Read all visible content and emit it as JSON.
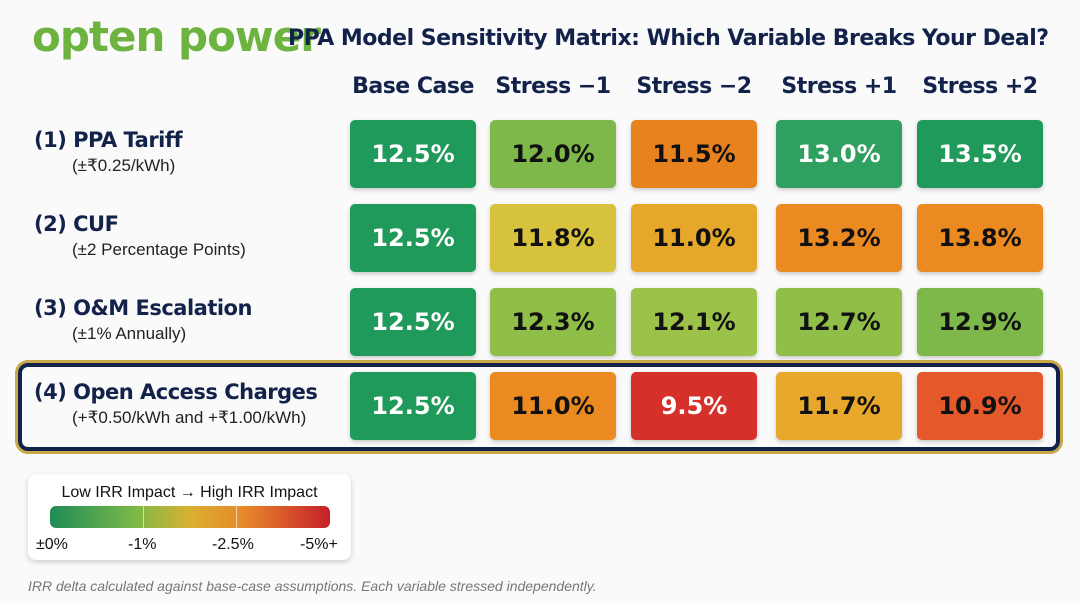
{
  "header": {
    "logo": "opten power",
    "title": "PPA Model Sensitivity Matrix: Which Variable Breaks Your Deal?"
  },
  "chart_data": {
    "type": "table",
    "title": "PPA Model Sensitivity Matrix: Which Variable Breaks Your Deal?",
    "columns": [
      "Base Case",
      "Stress −1",
      "Stress −2",
      "Stress +1",
      "Stress +2"
    ],
    "rows": [
      {
        "label": "(1) PPA Tariff",
        "sub": "(±₹0.25/kWh)",
        "values": [
          "12.5%",
          "12.0%",
          "11.5%",
          "13.0%",
          "13.5%"
        ],
        "colors": [
          "#1f9a5a",
          "#7fb84a",
          "#e8821e",
          "#2fa060",
          "#1f9a5a"
        ]
      },
      {
        "label": "(2) CUF",
        "sub": "(±2 Percentage Points)",
        "values": [
          "12.5%",
          "11.8%",
          "11.0%",
          "13.2%",
          "13.8%"
        ],
        "colors": [
          "#1f9a5a",
          "#d6c23c",
          "#e6a82a",
          "#ec8a22",
          "#ec8a22"
        ]
      },
      {
        "label": "(3) O&M Escalation",
        "sub": "(±1% Annually)",
        "values": [
          "12.5%",
          "12.3%",
          "12.1%",
          "12.7%",
          "12.9%"
        ],
        "colors": [
          "#1f9a5a",
          "#8fbf48",
          "#9cc24a",
          "#8fbf48",
          "#7fb84a"
        ]
      },
      {
        "label": "(4) Open Access Charges",
        "sub": "(+₹0.50/kWh and +₹1.00/kWh)",
        "values": [
          "12.5%",
          "11.0%",
          "9.5%",
          "11.7%",
          "10.9%"
        ],
        "colors": [
          "#1f9a5a",
          "#ea8a20",
          "#d6302a",
          "#e8a82c",
          "#e5582a"
        ]
      }
    ],
    "highlighted_row": 3
  },
  "legend": {
    "title": "Low IRR Impact → High IRR Impact",
    "labels": [
      "±0%",
      "-1%",
      "-2.5%",
      "-5%+"
    ]
  },
  "note": "IRR delta calculated against base-case assumptions. Each variable stressed independently."
}
